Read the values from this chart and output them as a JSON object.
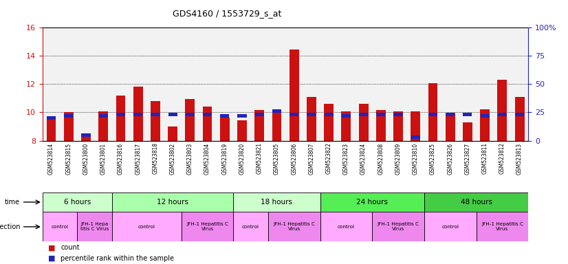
{
  "title": "GDS4160 / 1553729_s_at",
  "samples": [
    "GSM523814",
    "GSM523815",
    "GSM523800",
    "GSM523801",
    "GSM523816",
    "GSM523817",
    "GSM523818",
    "GSM523802",
    "GSM523803",
    "GSM523804",
    "GSM523819",
    "GSM523820",
    "GSM523821",
    "GSM523805",
    "GSM523806",
    "GSM523807",
    "GSM523822",
    "GSM523823",
    "GSM523824",
    "GSM523808",
    "GSM523809",
    "GSM523810",
    "GSM523825",
    "GSM523826",
    "GSM523827",
    "GSM523811",
    "GSM523812",
    "GSM523813"
  ],
  "count_values": [
    9.65,
    10.0,
    8.45,
    10.05,
    11.2,
    11.8,
    10.8,
    9.0,
    10.95,
    10.4,
    9.65,
    9.45,
    10.15,
    10.2,
    14.45,
    11.1,
    10.6,
    10.05,
    10.6,
    10.15,
    10.05,
    10.05,
    12.05,
    9.95,
    9.3,
    10.2,
    12.3,
    11.1
  ],
  "percentile_values": [
    20,
    22,
    5,
    22,
    23,
    23,
    23,
    23,
    23,
    23,
    22,
    22,
    23,
    26,
    23,
    23,
    23,
    22,
    23,
    23,
    23,
    3,
    23,
    23,
    23,
    22,
    23,
    23
  ],
  "ylim_left": [
    8,
    16
  ],
  "ylim_right": [
    0,
    100
  ],
  "yticks_left": [
    8,
    10,
    12,
    14,
    16
  ],
  "yticks_right": [
    0,
    25,
    50,
    75,
    100
  ],
  "bar_color": "#cc1111",
  "blue_color": "#2222bb",
  "bar_bottom": 8.0,
  "time_groups": [
    {
      "label": "6 hours",
      "start": 0,
      "end": 4,
      "color": "#ccffcc"
    },
    {
      "label": "12 hours",
      "start": 4,
      "end": 11,
      "color": "#aaffaa"
    },
    {
      "label": "18 hours",
      "start": 11,
      "end": 16,
      "color": "#ccffcc"
    },
    {
      "label": "24 hours",
      "start": 16,
      "end": 22,
      "color": "#55ee55"
    },
    {
      "label": "48 hours",
      "start": 22,
      "end": 28,
      "color": "#44cc44"
    }
  ],
  "infection_groups": [
    {
      "label": "control",
      "start": 0,
      "end": 2,
      "color": "#ffaaff"
    },
    {
      "label": "JFH-1 Hepa\ntitis C Virus",
      "start": 2,
      "end": 4,
      "color": "#ee88ee"
    },
    {
      "label": "control",
      "start": 4,
      "end": 8,
      "color": "#ffaaff"
    },
    {
      "label": "JFH-1 Hepatitis C\nVirus",
      "start": 8,
      "end": 11,
      "color": "#ee88ee"
    },
    {
      "label": "control",
      "start": 11,
      "end": 13,
      "color": "#ffaaff"
    },
    {
      "label": "JFH-1 Hepatitis C\nVirus",
      "start": 13,
      "end": 16,
      "color": "#ee88ee"
    },
    {
      "label": "control",
      "start": 16,
      "end": 19,
      "color": "#ffaaff"
    },
    {
      "label": "JFH-1 Hepatitis C\nVirus",
      "start": 19,
      "end": 22,
      "color": "#ee88ee"
    },
    {
      "label": "control",
      "start": 22,
      "end": 25,
      "color": "#ffaaff"
    },
    {
      "label": "JFH-1 Hepatitis C\nVirus",
      "start": 25,
      "end": 28,
      "color": "#ee88ee"
    }
  ],
  "chart_bg": "#f2f2f2",
  "left_axis_color": "#cc1111",
  "right_axis_color": "#2222bb"
}
